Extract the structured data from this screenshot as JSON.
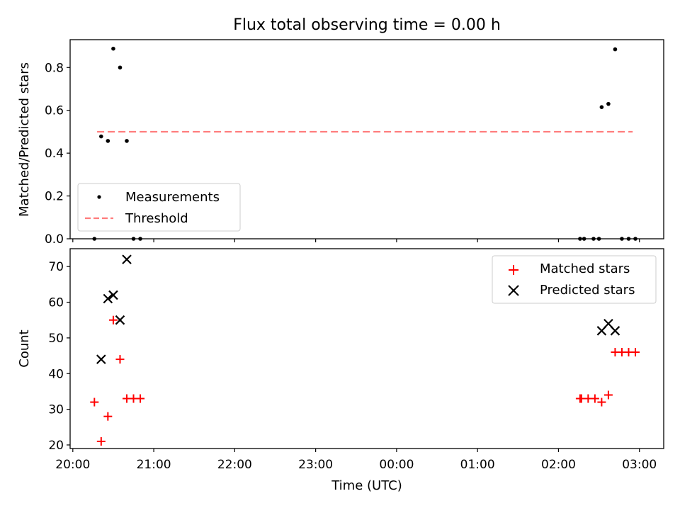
{
  "figure": {
    "title": "Flux total observing time = 0.00 h"
  },
  "chart_data": [
    {
      "type": "scatter",
      "panel": "top",
      "title": "Flux total observing time = 0.00 h",
      "xlabel": "",
      "ylabel": "Matched/Predicted stars",
      "xlim": [
        "19:58",
        "03:18"
      ],
      "ylim": [
        0.0,
        0.93
      ],
      "yticks": [
        "0.0",
        "0.2",
        "0.4",
        "0.6",
        "0.8"
      ],
      "grid": false,
      "legend": {
        "position": "lower-left",
        "entries": [
          "Measurements",
          "Threshold"
        ]
      },
      "series": [
        {
          "name": "Measurements",
          "marker": "dot",
          "color": "#000000",
          "points": [
            [
              "20:16",
              0.0
            ],
            [
              "20:21",
              0.478
            ],
            [
              "20:26",
              0.457
            ],
            [
              "20:30",
              0.888
            ],
            [
              "20:35",
              0.8
            ],
            [
              "20:40",
              0.457
            ],
            [
              "20:45",
              0.0
            ],
            [
              "20:50",
              0.0
            ],
            [
              "02:16",
              0.0
            ],
            [
              "02:19",
              0.0
            ],
            [
              "02:26",
              0.0
            ],
            [
              "02:30",
              0.0
            ],
            [
              "02:32",
              0.615
            ],
            [
              "02:37",
              0.63
            ],
            [
              "02:42",
              0.885
            ],
            [
              "02:47",
              0.0
            ],
            [
              "02:52",
              0.0
            ],
            [
              "02:57",
              0.0
            ]
          ]
        },
        {
          "name": "Threshold",
          "style": "dashed",
          "color": "#ff7b7b",
          "points": [
            [
              "20:18",
              0.5
            ],
            [
              "02:55",
              0.5
            ]
          ]
        }
      ]
    },
    {
      "type": "scatter",
      "panel": "bottom",
      "xlabel": "Time (UTC)",
      "ylabel": "Count",
      "xlim": [
        "19:58",
        "03:18"
      ],
      "ylim": [
        19,
        75
      ],
      "xticks": [
        "20:00",
        "21:00",
        "22:00",
        "23:00",
        "00:00",
        "01:00",
        "02:00",
        "03:00"
      ],
      "yticks": [
        "20",
        "30",
        "40",
        "50",
        "60",
        "70"
      ],
      "grid": false,
      "legend": {
        "position": "upper-right",
        "entries": [
          "Matched stars",
          "Predicted stars"
        ]
      },
      "series": [
        {
          "name": "Matched stars",
          "marker": "plus",
          "color": "#ff0000",
          "points": [
            [
              "20:16",
              32
            ],
            [
              "20:21",
              21
            ],
            [
              "20:26",
              28
            ],
            [
              "20:30",
              55
            ],
            [
              "20:35",
              44
            ],
            [
              "20:40",
              33
            ],
            [
              "20:45",
              33
            ],
            [
              "20:50",
              33
            ],
            [
              "02:16",
              33
            ],
            [
              "02:17",
              33
            ],
            [
              "02:22",
              33
            ],
            [
              "02:27",
              33
            ],
            [
              "02:32",
              32
            ],
            [
              "02:37",
              34
            ],
            [
              "02:42",
              46
            ],
            [
              "02:47",
              46
            ],
            [
              "02:52",
              46
            ],
            [
              "02:57",
              46
            ]
          ]
        },
        {
          "name": "Predicted stars",
          "marker": "x",
          "color": "#000000",
          "points": [
            [
              "20:21",
              44
            ],
            [
              "20:26",
              61
            ],
            [
              "20:30",
              62
            ],
            [
              "20:35",
              55
            ],
            [
              "20:40",
              72
            ],
            [
              "02:32",
              52
            ],
            [
              "02:37",
              54
            ],
            [
              "02:42",
              52
            ]
          ]
        }
      ]
    }
  ]
}
